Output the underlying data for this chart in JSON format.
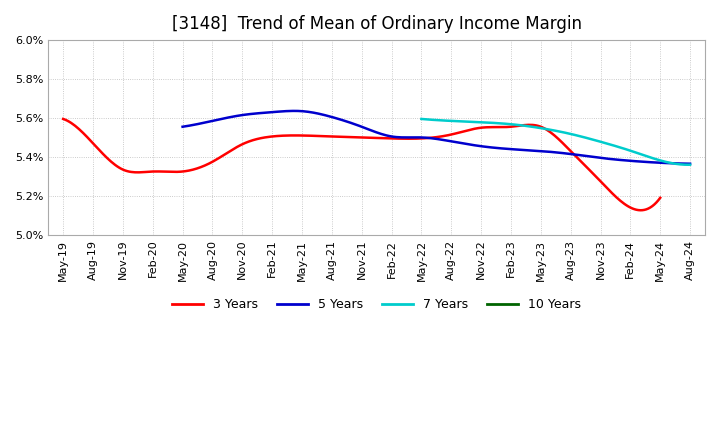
{
  "title": "[3148]  Trend of Mean of Ordinary Income Margin",
  "ylim": [
    5.0,
    6.0
  ],
  "yticks": [
    5.0,
    5.2,
    5.4,
    5.6,
    5.8,
    6.0
  ],
  "x_labels": [
    "May-19",
    "Aug-19",
    "Nov-19",
    "Feb-20",
    "May-20",
    "Aug-20",
    "Nov-20",
    "Feb-21",
    "May-21",
    "Aug-21",
    "Nov-21",
    "Feb-22",
    "May-22",
    "Aug-22",
    "Nov-22",
    "Feb-23",
    "May-23",
    "Aug-23",
    "Nov-23",
    "Feb-24",
    "May-24",
    "Aug-24"
  ],
  "series": {
    "3 Years": {
      "color": "#FF0000",
      "data_x": [
        0,
        1,
        2,
        3,
        4,
        5,
        6,
        7,
        8,
        9,
        10,
        11,
        12,
        13,
        14,
        15,
        16,
        17,
        18,
        19,
        20
      ],
      "data_y": [
        5.595,
        5.47,
        5.335,
        5.325,
        5.325,
        5.375,
        5.465,
        5.505,
        5.51,
        5.505,
        5.5,
        5.495,
        5.495,
        5.515,
        5.55,
        5.555,
        5.555,
        5.43,
        5.275,
        5.14,
        5.19
      ]
    },
    "5 Years": {
      "color": "#0000CD",
      "data_x": [
        4,
        5,
        6,
        7,
        8,
        9,
        10,
        11,
        12,
        13,
        14,
        15,
        16,
        17,
        18,
        19,
        20,
        21
      ],
      "data_y": [
        5.555,
        5.585,
        5.615,
        5.63,
        5.635,
        5.605,
        5.555,
        5.505,
        5.5,
        5.48,
        5.455,
        5.44,
        5.43,
        5.415,
        5.395,
        5.38,
        5.37,
        5.365
      ]
    },
    "7 Years": {
      "color": "#00CCCC",
      "data_x": [
        12,
        13,
        14,
        15,
        16,
        17,
        18,
        19,
        20,
        21
      ],
      "data_y": [
        5.595,
        5.585,
        5.578,
        5.568,
        5.548,
        5.518,
        5.478,
        5.432,
        5.382,
        5.36
      ]
    },
    "10 Years": {
      "color": "#006400",
      "data_x": [],
      "data_y": []
    }
  },
  "legend": {
    "entries": [
      "3 Years",
      "5 Years",
      "7 Years",
      "10 Years"
    ],
    "colors": [
      "#FF0000",
      "#0000CD",
      "#00CCCC",
      "#006400"
    ]
  },
  "background_color": "#ffffff",
  "grid_color": "#bbbbbb",
  "title_fontsize": 12,
  "tick_fontsize": 8
}
